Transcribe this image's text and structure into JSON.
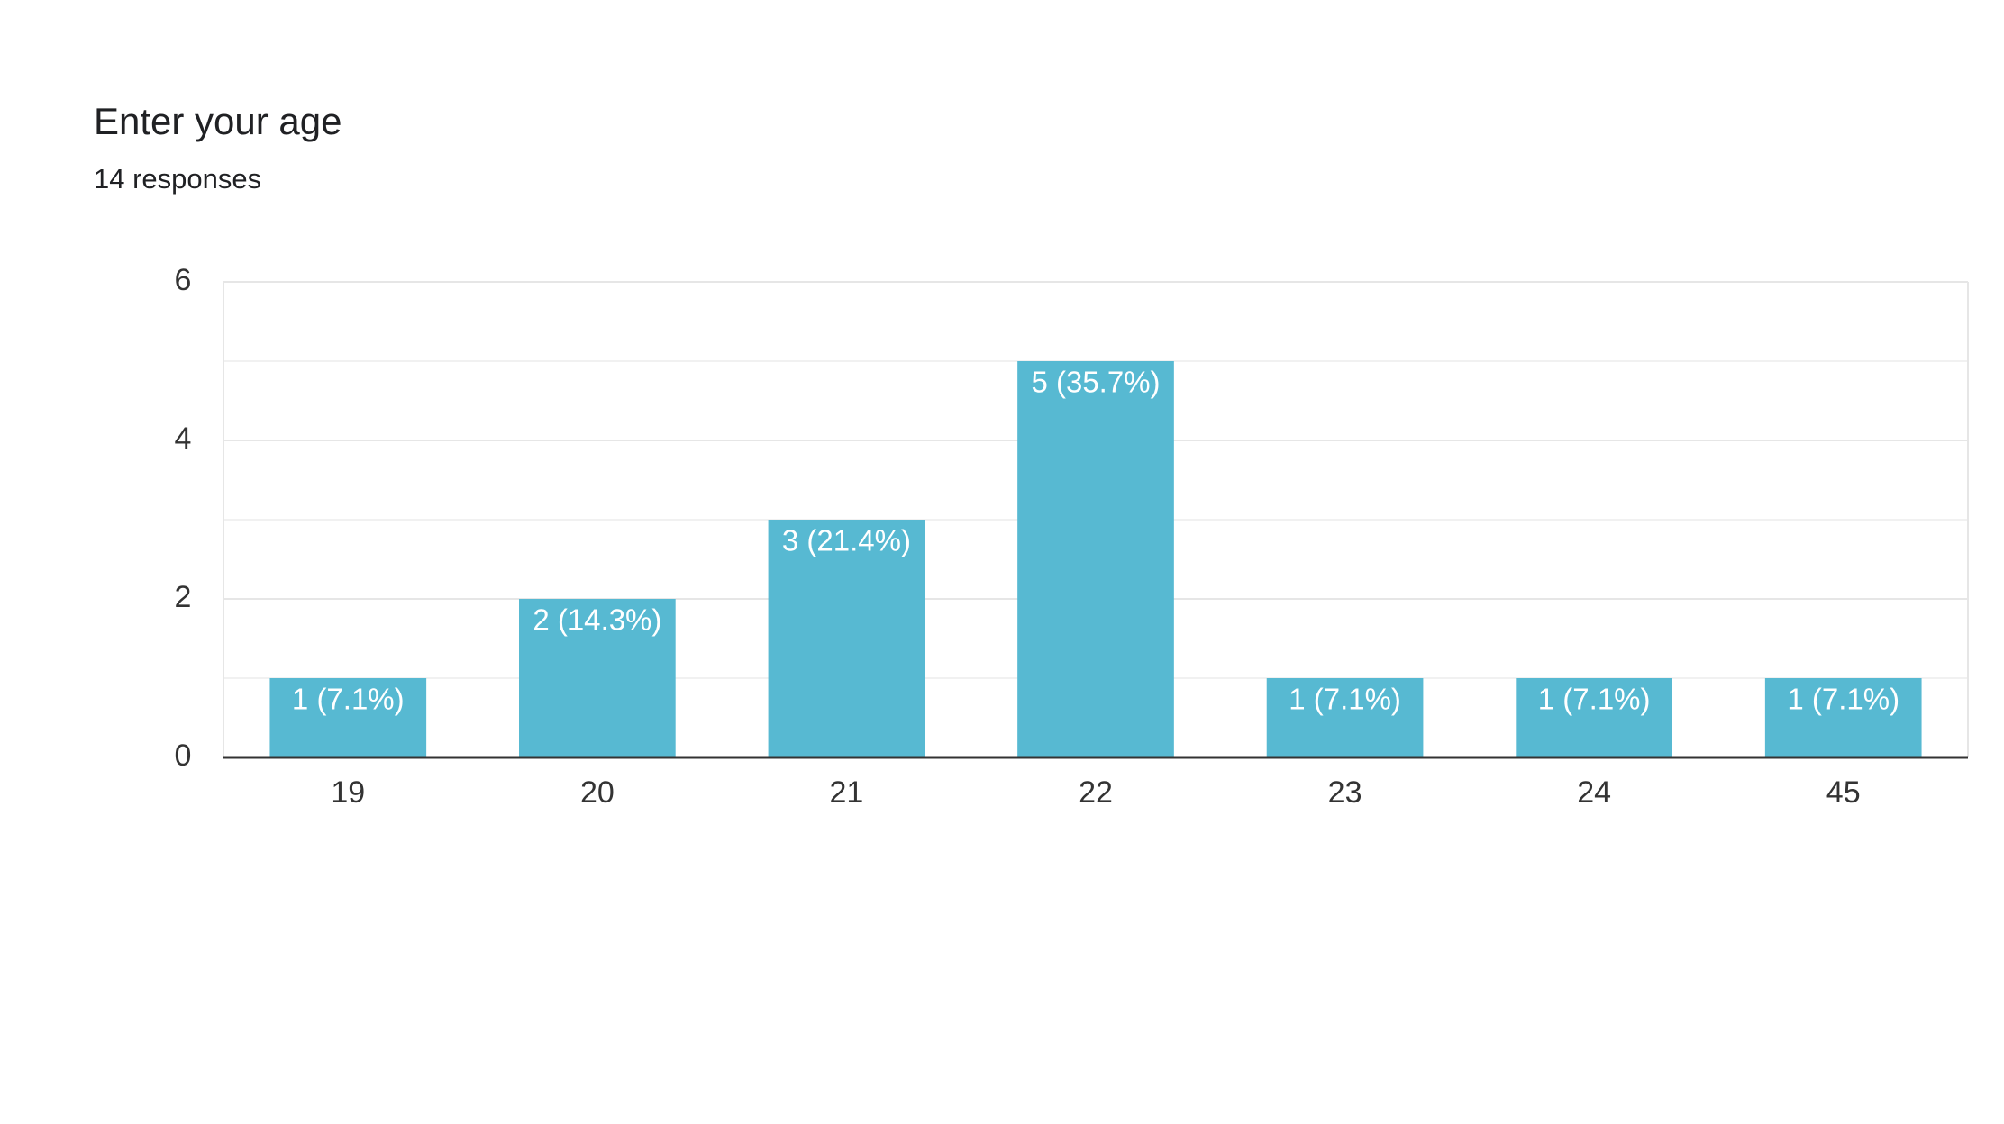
{
  "chart_data": {
    "type": "bar",
    "title": "Enter your age",
    "subtitle": "14 responses",
    "categories": [
      "19",
      "20",
      "21",
      "22",
      "23",
      "24",
      "45"
    ],
    "values": [
      1,
      2,
      3,
      5,
      1,
      1,
      1
    ],
    "value_labels": [
      "1 (7.1%)",
      "2 (14.3%)",
      "3 (21.4%)",
      "5 (35.7%)",
      "1 (7.1%)",
      "1 (7.1%)",
      "1 (7.1%)"
    ],
    "color": "#57b9d2",
    "ylim": [
      0,
      6
    ],
    "yticks": [
      0,
      2,
      4,
      6
    ],
    "minor_yticks": [
      1,
      3,
      5
    ],
    "grid": true
  }
}
